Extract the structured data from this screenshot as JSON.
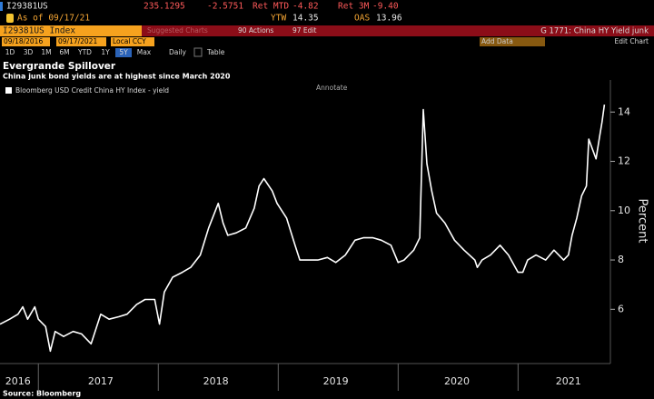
{
  "terminal": {
    "ticker": "I29381US",
    "price": "235.1295",
    "change": "-2.5751",
    "ret_mtd_label": "Ret MTD",
    "ret_mtd": "-4.82",
    "ret_3m_label": "Ret 3M",
    "ret_3m": "-9.40",
    "as_of": "As of 09/17/21",
    "ytw_label": "YTW",
    "ytw": "14.35",
    "oas_label": "OAS",
    "oas": "13.96",
    "security": "I29381US Index",
    "suggested": "Suggested Charts",
    "actions": "90 Actions",
    "edit": "97 Edit",
    "chart_name": "G 1771: China HY Yield junk",
    "start_date": "09/18/2016",
    "end_date": "09/17/2021",
    "currency": "Local CCY",
    "add_data": "Add Data",
    "edit_chart": "Edit Chart",
    "ranges": [
      "1D",
      "3D",
      "1M",
      "6M",
      "YTD",
      "1Y",
      "5Y",
      "Max"
    ],
    "frequency": "Daily",
    "table": "Table",
    "annotate": "Annotate"
  },
  "chart_data": {
    "type": "line",
    "title": "Evergrande Spillover",
    "subtitle": "China junk bond yields are at highest since March 2020",
    "y_label": "Percent",
    "source": "Source: Bloomberg",
    "grid": false,
    "x": [
      2016.68,
      2016.76,
      2016.83,
      2016.87,
      2016.91,
      2016.97,
      2017.0,
      2017.06,
      2017.1,
      2017.14,
      2017.21,
      2017.29,
      2017.36,
      2017.44,
      2017.52,
      2017.59,
      2017.67,
      2017.74,
      2017.82,
      2017.89,
      2017.97,
      2018.01,
      2018.05,
      2018.12,
      2018.2,
      2018.27,
      2018.35,
      2018.42,
      2018.5,
      2018.54,
      2018.58,
      2018.65,
      2018.73,
      2018.8,
      2018.84,
      2018.88,
      2018.95,
      2018.99,
      2019.07,
      2019.14,
      2019.18,
      2019.26,
      2019.33,
      2019.41,
      2019.48,
      2019.56,
      2019.64,
      2019.71,
      2019.79,
      2019.86,
      2019.94,
      2020.0,
      2020.05,
      2020.13,
      2020.18,
      2020.21,
      2020.24,
      2020.28,
      2020.32,
      2020.39,
      2020.47,
      2020.55,
      2020.64,
      2020.66,
      2020.7,
      2020.77,
      2020.85,
      2020.92,
      2021.0,
      2021.04,
      2021.08,
      2021.15,
      2021.23,
      2021.3,
      2021.38,
      2021.42,
      2021.45,
      2021.49,
      2021.53,
      2021.57,
      2021.59,
      2021.62,
      2021.65,
      2021.68,
      2021.7,
      2021.72
    ],
    "series": [
      {
        "name": "Bloomberg USD Credit China HY Index - yield",
        "color": "#ffffff",
        "values": [
          5.4,
          5.6,
          5.8,
          6.1,
          5.6,
          6.1,
          5.6,
          5.3,
          4.3,
          5.1,
          4.9,
          5.1,
          5.0,
          4.6,
          5.8,
          5.6,
          5.7,
          5.8,
          6.2,
          6.4,
          6.4,
          5.4,
          6.7,
          7.3,
          7.5,
          7.7,
          8.2,
          9.3,
          10.3,
          9.5,
          9.0,
          9.1,
          9.3,
          10.1,
          11.0,
          11.3,
          10.8,
          10.3,
          9.7,
          8.6,
          8.0,
          8.0,
          8.0,
          8.1,
          7.9,
          8.2,
          8.8,
          8.9,
          8.9,
          8.8,
          8.6,
          7.9,
          8.0,
          8.4,
          8.9,
          14.1,
          11.9,
          10.8,
          9.9,
          9.5,
          8.8,
          8.4,
          8.0,
          7.7,
          8.0,
          8.2,
          8.6,
          8.2,
          7.5,
          7.5,
          8.0,
          8.2,
          8.0,
          8.4,
          8.0,
          8.2,
          9.0,
          9.7,
          10.6,
          11.0,
          12.9,
          12.5,
          12.1,
          13.0,
          13.6,
          14.3
        ]
      }
    ],
    "xlim": [
      2016.68,
      2021.77
    ],
    "xticks": [
      {
        "value": 2016.83,
        "label": "2016"
      },
      {
        "value": 2017.52,
        "label": "2017"
      },
      {
        "value": 2018.48,
        "label": "2018"
      },
      {
        "value": 2019.48,
        "label": "2019"
      },
      {
        "value": 2020.49,
        "label": "2020"
      },
      {
        "value": 2021.42,
        "label": "2021"
      }
    ],
    "ylim": [
      3.8,
      15.3
    ],
    "yticks": [
      6,
      8,
      10,
      12,
      14
    ]
  }
}
